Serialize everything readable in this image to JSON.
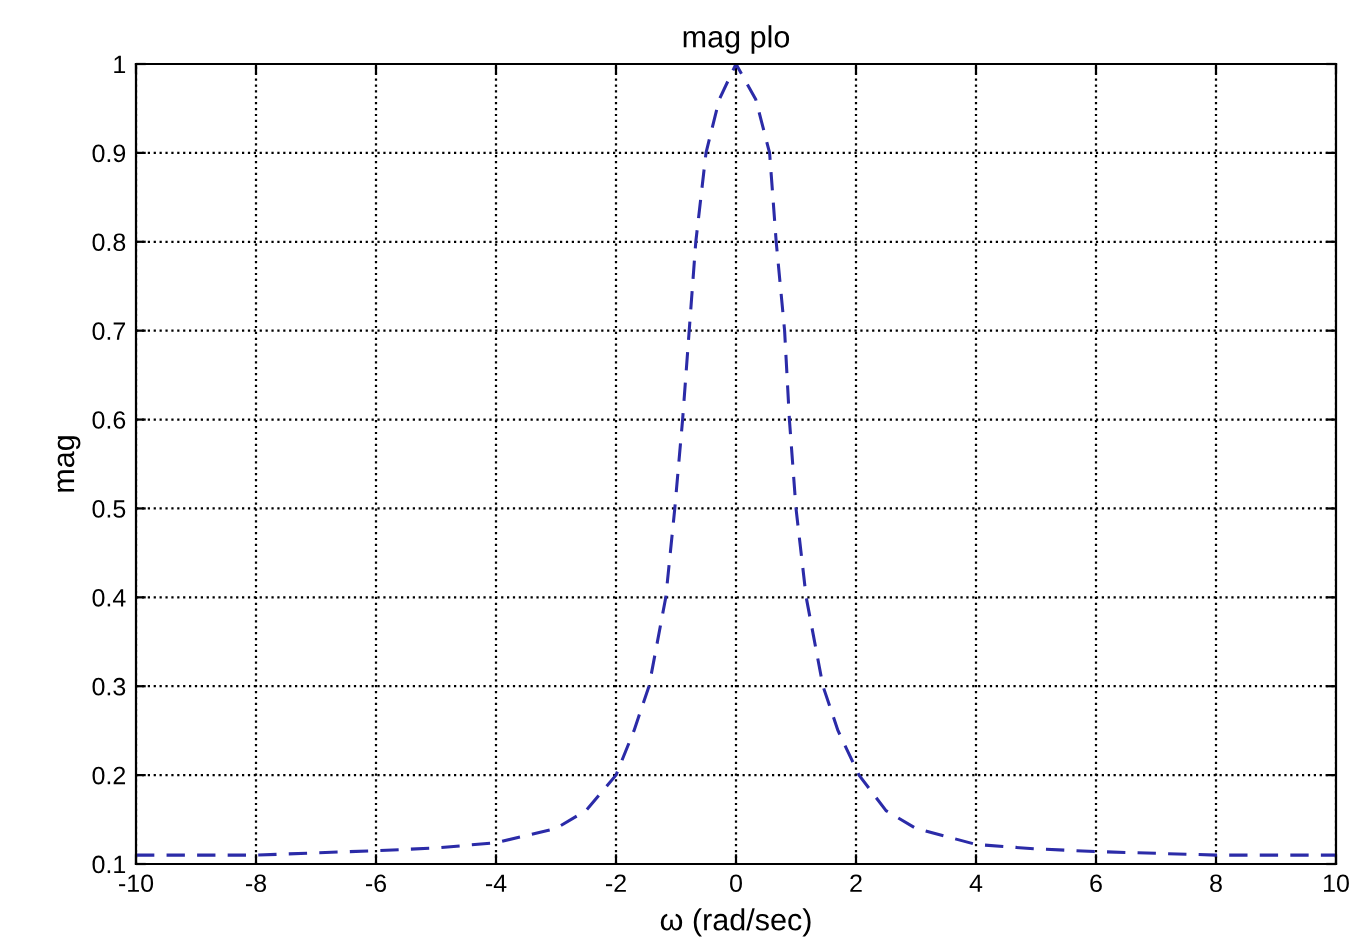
{
  "chart_data": {
    "type": "line",
    "title": "mag plo",
    "xlabel": "ω (rad/sec)",
    "ylabel": "mag",
    "series": [
      {
        "color": "#2b2ba8",
        "line_style": "dashed",
        "x": [
          -10,
          -8,
          -6,
          -5,
          -4,
          -3,
          -2.5,
          -2,
          -1.7,
          -1.45,
          -1.17,
          -1.02,
          -0.89,
          -0.78,
          -0.67,
          -0.5,
          -0.28,
          0,
          0.33,
          0.56,
          0.67,
          0.81,
          0.89,
          1.0,
          1.17,
          1.45,
          1.7,
          2.05,
          2.5,
          3,
          4,
          5,
          6,
          8,
          10
        ],
        "values": [
          0.11,
          0.11,
          0.115,
          0.118,
          0.124,
          0.14,
          0.16,
          0.2,
          0.25,
          0.3,
          0.4,
          0.5,
          0.6,
          0.7,
          0.8,
          0.9,
          0.96,
          1.0,
          0.96,
          0.9,
          0.8,
          0.7,
          0.6,
          0.5,
          0.4,
          0.3,
          0.25,
          0.2,
          0.16,
          0.14,
          0.122,
          0.117,
          0.114,
          0.11,
          0.11
        ]
      }
    ],
    "xlim": [
      -10,
      10
    ],
    "ylim": [
      0.1,
      1
    ],
    "xticks": [
      -10,
      -8,
      -6,
      -4,
      -2,
      0,
      2,
      4,
      6,
      8,
      10
    ],
    "yticks": [
      0.1,
      0.2,
      0.3,
      0.4,
      0.5,
      0.6,
      0.7,
      0.8,
      0.9,
      1
    ],
    "grid": true
  }
}
